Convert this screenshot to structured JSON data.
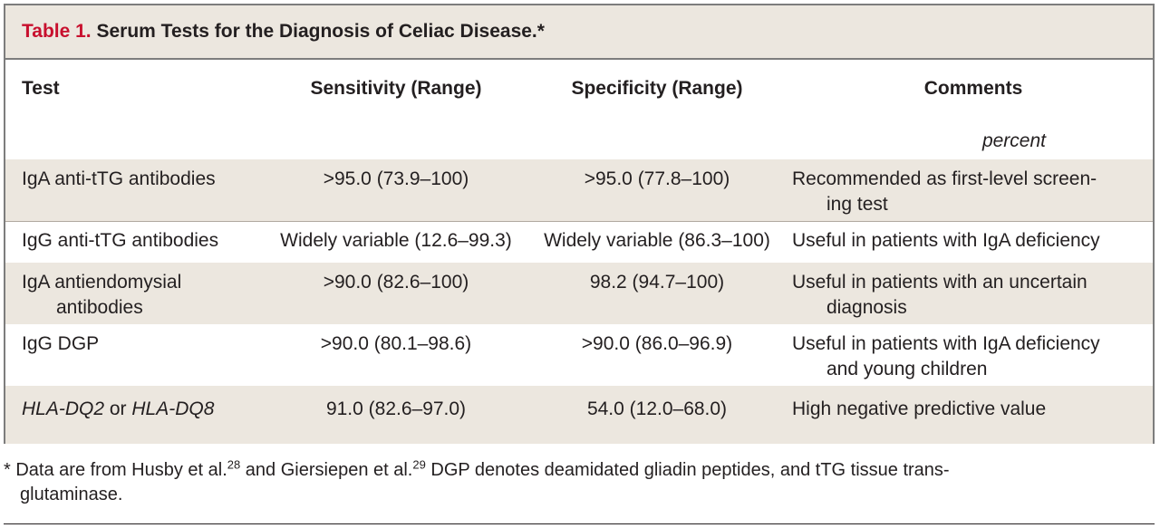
{
  "table": {
    "number": "Table 1.",
    "title": "Serum Tests for the Diagnosis of Celiac Disease.*",
    "headers": {
      "test": "Test",
      "sensitivity": "Sensitivity (Range)",
      "specificity": "Specificity (Range)",
      "comments": "Comments"
    },
    "unit_label": "percent",
    "rows": [
      {
        "test": "IgA anti-tTG antibodies",
        "sensitivity": ">95.0 (73.9–100)",
        "specificity": ">95.0 (77.8–100)",
        "comments_line1": "Recommended as first-level screen-",
        "comments_line2": "ing test"
      },
      {
        "test": "IgG anti-tTG antibodies",
        "sensitivity": "Widely variable (12.6–99.3)",
        "specificity": "Widely variable (86.3–100)",
        "comments_line1": "Useful in patients with IgA deficiency"
      },
      {
        "test_line1": "IgA antiendomysial",
        "test_line2": "antibodies",
        "sensitivity": ">90.0 (82.6–100)",
        "specificity": "98.2 (94.7–100)",
        "comments_line1": "Useful in patients with an uncertain",
        "comments_line2": "diagnosis"
      },
      {
        "test": "IgG DGP",
        "sensitivity": ">90.0 (80.1–98.6)",
        "specificity": ">90.0 (86.0–96.9)",
        "comments_line1": "Useful in patients with IgA deficiency",
        "comments_line2": "and young children"
      },
      {
        "test_a": "HLA-DQ2",
        "test_or": " or ",
        "test_b": "HLA-DQ8",
        "sensitivity": "91.0 (82.6–97.0)",
        "specificity": "54.0 (12.0–68.0)",
        "comments_line1": "High negative predictive value"
      }
    ]
  },
  "footnote": {
    "marker": "*",
    "part1": " Data are from Husby et al.",
    "ref1": "28",
    "part2": " and Giersiepen et al.",
    "ref2": "29",
    "part3": " DGP denotes deamidated gliadin peptides, and tTG tissue trans-",
    "line2": "glutaminase."
  }
}
